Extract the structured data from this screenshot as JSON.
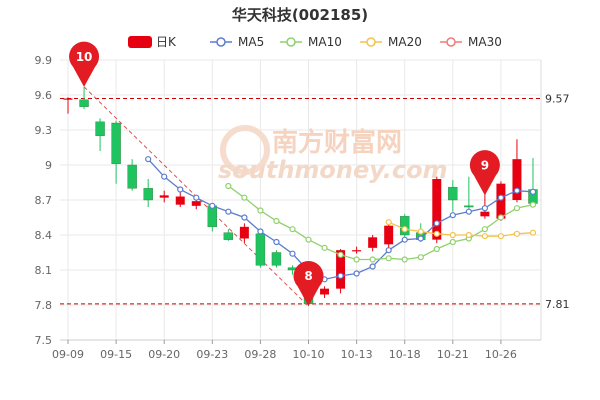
{
  "chart_data": {
    "type": "candlestick",
    "title": "华天科技(002185)",
    "legend": [
      {
        "label": "日K",
        "color": "#e60012",
        "kind": "candle"
      },
      {
        "label": "MA5",
        "color": "#5b7ccf",
        "kind": "line"
      },
      {
        "label": "MA10",
        "color": "#8fd16b",
        "kind": "line"
      },
      {
        "label": "MA20",
        "color": "#f5c24c",
        "kind": "line"
      },
      {
        "label": "MA30",
        "color": "#f07a7a",
        "kind": "line"
      }
    ],
    "ylim": [
      7.5,
      9.9
    ],
    "y_ticks": [
      "7.5",
      "7.8",
      "8.1",
      "8.4",
      "8.7",
      "9",
      "9.3",
      "9.6",
      "9.9"
    ],
    "x_ticks": [
      {
        "label": "09-09",
        "index": 0
      },
      {
        "label": "09-15",
        "index": 3
      },
      {
        "label": "09-20",
        "index": 6
      },
      {
        "label": "09-23",
        "index": 9
      },
      {
        "label": "09-28",
        "index": 12
      },
      {
        "label": "10-10",
        "index": 15
      },
      {
        "label": "10-13",
        "index": 18
      },
      {
        "label": "10-18",
        "index": 21
      },
      {
        "label": "10-21",
        "index": 24
      },
      {
        "label": "10-26",
        "index": 27
      }
    ],
    "candles": [
      {
        "o": 9.56,
        "c": 9.57,
        "h": 9.58,
        "l": 9.44
      },
      {
        "o": 9.56,
        "c": 9.5,
        "h": 9.67,
        "l": 9.48
      },
      {
        "o": 9.37,
        "c": 9.25,
        "h": 9.4,
        "l": 9.12
      },
      {
        "o": 9.36,
        "c": 9.01,
        "h": 9.38,
        "l": 8.84
      },
      {
        "o": 9.0,
        "c": 8.8,
        "h": 9.05,
        "l": 8.78
      },
      {
        "o": 8.8,
        "c": 8.7,
        "h": 8.88,
        "l": 8.64
      },
      {
        "o": 8.72,
        "c": 8.74,
        "h": 8.78,
        "l": 8.68
      },
      {
        "o": 8.66,
        "c": 8.73,
        "h": 8.77,
        "l": 8.64
      },
      {
        "o": 8.65,
        "c": 8.69,
        "h": 8.72,
        "l": 8.62
      },
      {
        "o": 8.65,
        "c": 8.47,
        "h": 8.67,
        "l": 8.43
      },
      {
        "o": 8.42,
        "c": 8.36,
        "h": 8.45,
        "l": 8.35
      },
      {
        "o": 8.37,
        "c": 8.47,
        "h": 8.5,
        "l": 8.33
      },
      {
        "o": 8.41,
        "c": 8.14,
        "h": 8.42,
        "l": 8.12
      },
      {
        "o": 8.25,
        "c": 8.14,
        "h": 8.27,
        "l": 8.12
      },
      {
        "o": 8.12,
        "c": 8.1,
        "h": 8.14,
        "l": 8.06
      },
      {
        "o": 7.9,
        "c": 7.81,
        "h": 7.92,
        "l": 7.79
      },
      {
        "o": 7.89,
        "c": 7.94,
        "h": 7.96,
        "l": 7.86
      },
      {
        "o": 7.94,
        "c": 8.27,
        "h": 8.28,
        "l": 7.9
      },
      {
        "o": 8.27,
        "c": 8.27,
        "h": 8.3,
        "l": 8.24
      },
      {
        "o": 8.29,
        "c": 8.38,
        "h": 8.4,
        "l": 8.26
      },
      {
        "o": 8.32,
        "c": 8.48,
        "h": 8.5,
        "l": 8.29
      },
      {
        "o": 8.56,
        "c": 8.4,
        "h": 8.58,
        "l": 8.38
      },
      {
        "o": 8.42,
        "c": 8.36,
        "h": 8.5,
        "l": 8.34
      },
      {
        "o": 8.36,
        "c": 8.88,
        "h": 8.9,
        "l": 8.33
      },
      {
        "o": 8.81,
        "c": 8.7,
        "h": 8.87,
        "l": 8.6
      },
      {
        "o": 8.65,
        "c": 8.64,
        "h": 8.9,
        "l": 8.62
      },
      {
        "o": 8.56,
        "c": 8.6,
        "h": 8.75,
        "l": 8.54
      },
      {
        "o": 8.54,
        "c": 8.84,
        "h": 8.86,
        "l": 8.52
      },
      {
        "o": 8.7,
        "c": 9.05,
        "h": 9.22,
        "l": 8.68
      },
      {
        "o": 8.79,
        "c": 8.67,
        "h": 9.06,
        "l": 8.64
      }
    ],
    "series": [
      {
        "name": "MA5",
        "points": [
          [
            5,
            9.05
          ],
          [
            6,
            8.9
          ],
          [
            7,
            8.79
          ],
          [
            8,
            8.72
          ],
          [
            9,
            8.65
          ],
          [
            10,
            8.6
          ],
          [
            11,
            8.55
          ],
          [
            12,
            8.43
          ],
          [
            13,
            8.34
          ],
          [
            14,
            8.24
          ],
          [
            15,
            8.09
          ],
          [
            16,
            8.02
          ],
          [
            17,
            8.05
          ],
          [
            18,
            8.07
          ],
          [
            19,
            8.13
          ],
          [
            20,
            8.27
          ],
          [
            21,
            8.36
          ],
          [
            22,
            8.37
          ],
          [
            23,
            8.5
          ],
          [
            24,
            8.57
          ],
          [
            25,
            8.6
          ],
          [
            26,
            8.63
          ],
          [
            27,
            8.72
          ],
          [
            28,
            8.78
          ],
          [
            29,
            8.77
          ]
        ]
      },
      {
        "name": "MA10",
        "points": [
          [
            10,
            8.82
          ],
          [
            11,
            8.72
          ],
          [
            12,
            8.61
          ],
          [
            13,
            8.52
          ],
          [
            14,
            8.45
          ],
          [
            15,
            8.36
          ],
          [
            16,
            8.29
          ],
          [
            17,
            8.23
          ],
          [
            18,
            8.19
          ],
          [
            19,
            8.19
          ],
          [
            20,
            8.2
          ],
          [
            21,
            8.19
          ],
          [
            22,
            8.21
          ],
          [
            23,
            8.28
          ],
          [
            24,
            8.34
          ],
          [
            25,
            8.37
          ],
          [
            26,
            8.45
          ],
          [
            27,
            8.55
          ],
          [
            28,
            8.63
          ],
          [
            29,
            8.66
          ]
        ]
      },
      {
        "name": "MA20",
        "points": [
          [
            20,
            8.51
          ],
          [
            21,
            8.45
          ],
          [
            22,
            8.43
          ],
          [
            23,
            8.41
          ],
          [
            24,
            8.4
          ],
          [
            25,
            8.4
          ],
          [
            26,
            8.39
          ],
          [
            27,
            8.39
          ],
          [
            28,
            8.41
          ],
          [
            29,
            8.42
          ]
        ]
      }
    ],
    "reference_lines": [
      {
        "label": "9.57",
        "value": 9.57
      },
      {
        "label": "7.81",
        "value": 7.81
      }
    ],
    "markers": [
      {
        "label": "10",
        "index": 1,
        "value": 9.67
      },
      {
        "label": "8",
        "index": 15,
        "value": 7.79
      },
      {
        "label": "9",
        "index": 26,
        "value": 8.74
      }
    ],
    "trend_line": [
      [
        1,
        9.67
      ],
      [
        15,
        7.79
      ]
    ],
    "watermark": {
      "cn": "南方财富网",
      "en": "southmoney.com"
    }
  }
}
